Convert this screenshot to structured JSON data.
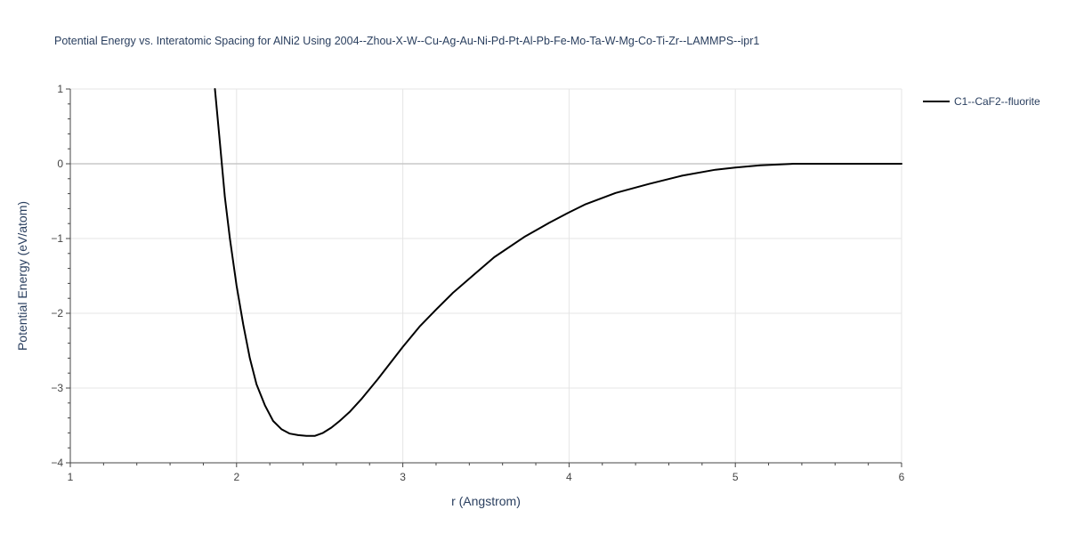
{
  "chart_data": {
    "type": "line",
    "title": "Potential Energy vs. Interatomic Spacing for AlNi2 Using 2004--Zhou-X-W--Cu-Ag-Au-Ni-Pd-Pt-Al-Pb-Fe-Mo-Ta-W-Mg-Co-Ti-Zr--LAMMPS--ipr1",
    "xlabel": "r (Angstrom)",
    "ylabel": "Potential Energy (eV/atom)",
    "xlim": [
      1,
      6
    ],
    "ylim": [
      -4,
      1
    ],
    "x_ticks": [
      "1",
      "2",
      "3",
      "4",
      "5",
      "6"
    ],
    "y_ticks": [
      "1",
      "0",
      "−1",
      "−2",
      "−3",
      "−4"
    ],
    "grid": true,
    "legend_position": "top-right",
    "series": [
      {
        "name": "C1--CaF2--fluorite",
        "color": "#000000",
        "x": [
          1.87,
          1.9,
          1.93,
          1.96,
          2.0,
          2.04,
          2.08,
          2.12,
          2.17,
          2.22,
          2.27,
          2.32,
          2.37,
          2.42,
          2.47,
          2.52,
          2.57,
          2.62,
          2.68,
          2.75,
          2.85,
          3.0,
          3.1,
          3.2,
          3.3,
          3.43,
          3.55,
          3.73,
          3.88,
          4.0,
          4.1,
          4.28,
          4.48,
          4.68,
          4.88,
          5.0,
          5.15,
          5.35,
          5.6,
          6.0
        ],
        "y": [
          1.0,
          0.28,
          -0.45,
          -1.0,
          -1.63,
          -2.15,
          -2.6,
          -2.95,
          -3.23,
          -3.44,
          -3.55,
          -3.61,
          -3.63,
          -3.64,
          -3.64,
          -3.6,
          -3.53,
          -3.44,
          -3.32,
          -3.15,
          -2.88,
          -2.45,
          -2.18,
          -1.95,
          -1.73,
          -1.48,
          -1.25,
          -0.98,
          -0.79,
          -0.65,
          -0.54,
          -0.39,
          -0.27,
          -0.16,
          -0.08,
          -0.05,
          -0.02,
          0.0,
          0.0,
          0.0
        ]
      }
    ]
  }
}
